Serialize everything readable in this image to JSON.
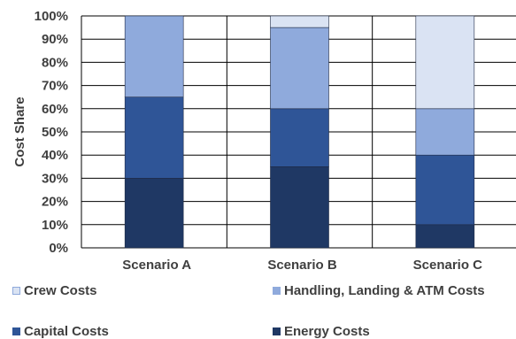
{
  "chart_data": {
    "type": "bar",
    "stacked": true,
    "categories": [
      "Scenario A",
      "Scenario B",
      "Scenario C"
    ],
    "series": [
      {
        "name": "Energy Costs",
        "values": [
          30,
          35,
          10
        ],
        "color": "#1f3864"
      },
      {
        "name": "Capital Costs",
        "values": [
          35,
          25,
          30
        ],
        "color": "#2f5597"
      },
      {
        "name": "Handling, Landing & ATM Costs",
        "values": [
          35,
          35,
          20
        ],
        "color": "#8faadc"
      },
      {
        "name": "Crew Costs",
        "values": [
          0,
          5,
          40
        ],
        "color": "#dae3f3"
      }
    ],
    "ylabel": "Cost Share",
    "ylim": [
      0,
      100
    ],
    "yticks": [
      "0%",
      "10%",
      "20%",
      "30%",
      "40%",
      "50%",
      "60%",
      "70%",
      "80%",
      "90%",
      "100%"
    ],
    "grid": true,
    "legend_position": "bottom"
  },
  "legend": {
    "items": [
      {
        "label": "Crew Costs",
        "color": "#dae3f3"
      },
      {
        "label": "Handling, Landing & ATM Costs",
        "color": "#8faadc"
      },
      {
        "label": "Capital Costs",
        "color": "#2f5597"
      },
      {
        "label": "Energy Costs",
        "color": "#1f3864"
      }
    ]
  }
}
